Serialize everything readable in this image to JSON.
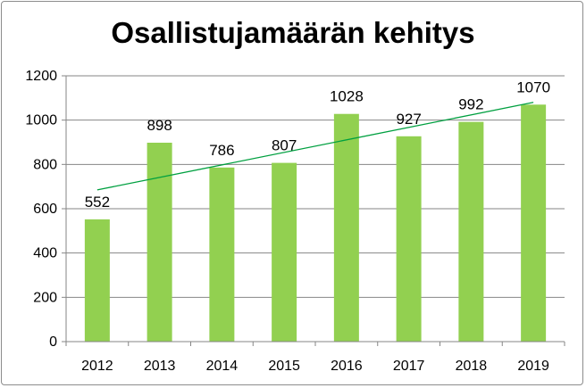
{
  "chart_data": {
    "type": "bar",
    "title": "Osallistujamäärän kehitys",
    "categories": [
      "2012",
      "2013",
      "2014",
      "2015",
      "2016",
      "2017",
      "2018",
      "2019"
    ],
    "values": [
      552,
      898,
      786,
      807,
      1028,
      927,
      992,
      1070
    ],
    "data_labels": [
      "552",
      "898",
      "786",
      "807",
      "1028",
      "927",
      "992",
      "1070"
    ],
    "ylim": [
      0,
      1200
    ],
    "yticks": [
      0,
      200,
      400,
      600,
      800,
      1000,
      1200
    ],
    "grid": true,
    "legend": "none",
    "trendline": {
      "type": "linear"
    },
    "colors": {
      "bar": "#92d050",
      "trend": "#00a040",
      "grid": "#868686",
      "axis": "#868686"
    }
  }
}
